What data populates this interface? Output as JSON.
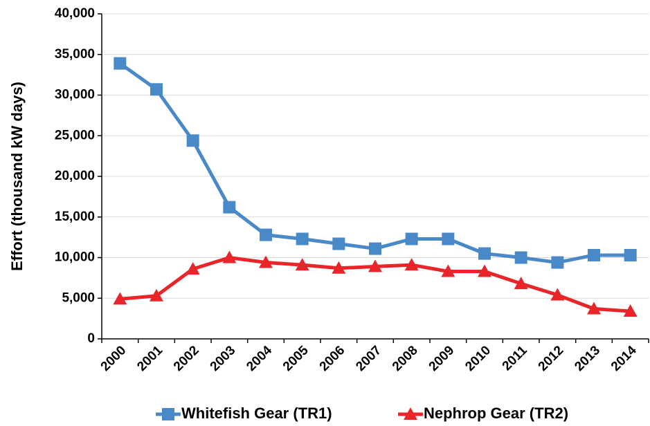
{
  "chart_data": {
    "type": "line",
    "y_label": "Effort (thousand kW days)",
    "categories": [
      "2000",
      "2001",
      "2002",
      "2003",
      "2004",
      "2005",
      "2006",
      "2007",
      "2008",
      "2009",
      "2010",
      "2011",
      "2012",
      "2013",
      "2014"
    ],
    "series": [
      {
        "name": "Whitefish Gear (TR1)",
        "color": "#4a89c8",
        "marker": "square",
        "values": [
          33900,
          30700,
          24400,
          16200,
          12800,
          12300,
          11700,
          11100,
          12300,
          12300,
          10500,
          10000,
          9400,
          10300,
          10300
        ]
      },
      {
        "name": "Nephrop Gear (TR2)",
        "color": "#e8262a",
        "marker": "triangle",
        "values": [
          4900,
          5300,
          8600,
          10000,
          9400,
          9100,
          8700,
          8900,
          9100,
          8300,
          8300,
          6800,
          5400,
          3700,
          3400
        ]
      }
    ],
    "ylim": [
      0,
      40000
    ],
    "yticks": [
      0,
      {
        "value": 5000,
        "label": "5,000"
      },
      {
        "value": 10000,
        "label": "10,000"
      },
      {
        "value": 15000,
        "label": "15,000"
      },
      {
        "value": 20000,
        "label": "20,000"
      },
      {
        "value": 25000,
        "label": "25,000"
      },
      {
        "value": 30000,
        "label": "30,000"
      },
      {
        "value": 35000,
        "label": "35,000"
      },
      {
        "value": 40000,
        "label": "40,000"
      }
    ],
    "grid": true,
    "legend": "bottom"
  }
}
